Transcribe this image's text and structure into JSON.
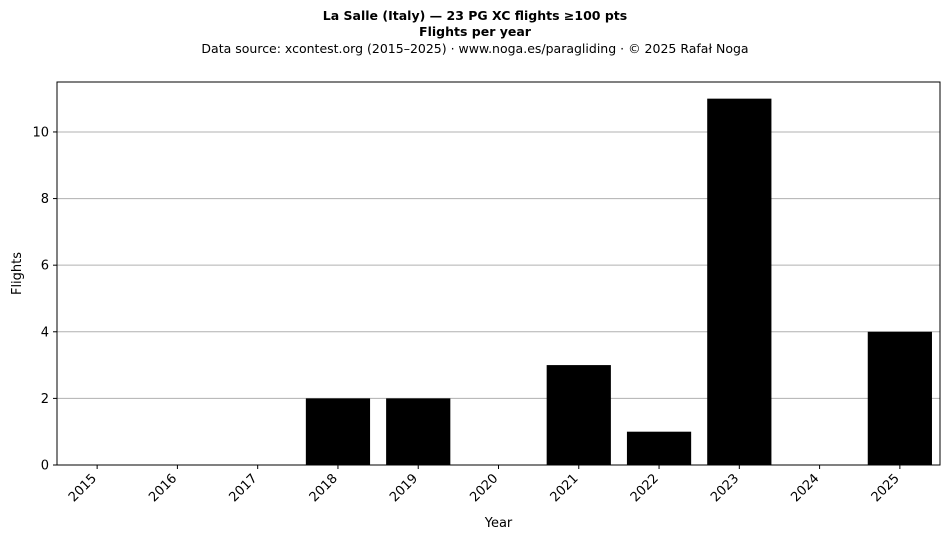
{
  "chart_data": {
    "type": "bar",
    "title": "La Salle (Italy)  —  23 PG XC flights ≥100 pts",
    "subtitle": "Flights per year",
    "source_note": "Data source: xcontest.org (2015–2025)  ·  www.noga.es/paragliding  ·  © 2025 Rafał Noga",
    "xlabel": "Year",
    "ylabel": "Flights",
    "categories": [
      "2015",
      "2016",
      "2017",
      "2018",
      "2019",
      "2020",
      "2021",
      "2022",
      "2023",
      "2024",
      "2025"
    ],
    "values": [
      0,
      0,
      0,
      2,
      2,
      0,
      3,
      1,
      11,
      0,
      4
    ],
    "ylim": [
      0,
      11.5
    ],
    "yticks": [
      0,
      2,
      4,
      6,
      8,
      10
    ],
    "grid": "horizontal",
    "bar_color": "#000000",
    "grid_color": "#b0b0b0"
  }
}
